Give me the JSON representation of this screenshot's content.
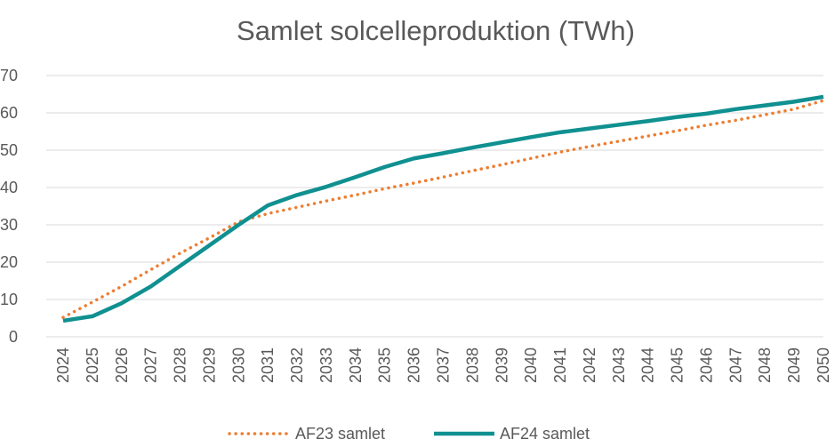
{
  "chart_data": {
    "type": "line",
    "title": "Samlet solcelleproduktion (TWh)",
    "x": [
      "2024",
      "2025",
      "2026",
      "2027",
      "2028",
      "2029",
      "2030",
      "2031",
      "2032",
      "2033",
      "2034",
      "2035",
      "2036",
      "2037",
      "2038",
      "2039",
      "2040",
      "2041",
      "2042",
      "2043",
      "2044",
      "2045",
      "2046",
      "2047",
      "2048",
      "2049",
      "2050"
    ],
    "series": [
      {
        "name": "AF23 samlet",
        "color": "#ed7d31",
        "dash": "dotted",
        "values": [
          5.2,
          9.3,
          13.5,
          18,
          22.4,
          26.5,
          30.8,
          33,
          34.7,
          36.4,
          38,
          39.7,
          41.2,
          42.8,
          44.5,
          46.1,
          47.8,
          49.5,
          51,
          52.4,
          53.8,
          55.2,
          56.7,
          58,
          59.5,
          61,
          63.3
        ]
      },
      {
        "name": "AF24 samlet",
        "color": "#109090",
        "dash": "solid",
        "values": [
          4.3,
          5.5,
          9,
          13.5,
          19,
          24.5,
          30,
          35.2,
          38,
          40.2,
          42.8,
          45.5,
          47.8,
          49.2,
          50.7,
          52.1,
          53.5,
          54.8,
          55.8,
          56.8,
          57.8,
          58.9,
          59.8,
          61,
          62,
          63,
          64.3
        ]
      }
    ],
    "ylim": [
      0,
      70
    ],
    "yticks": [
      0,
      10,
      20,
      30,
      40,
      50,
      60,
      70
    ],
    "grid": true,
    "legend": "bottom"
  }
}
